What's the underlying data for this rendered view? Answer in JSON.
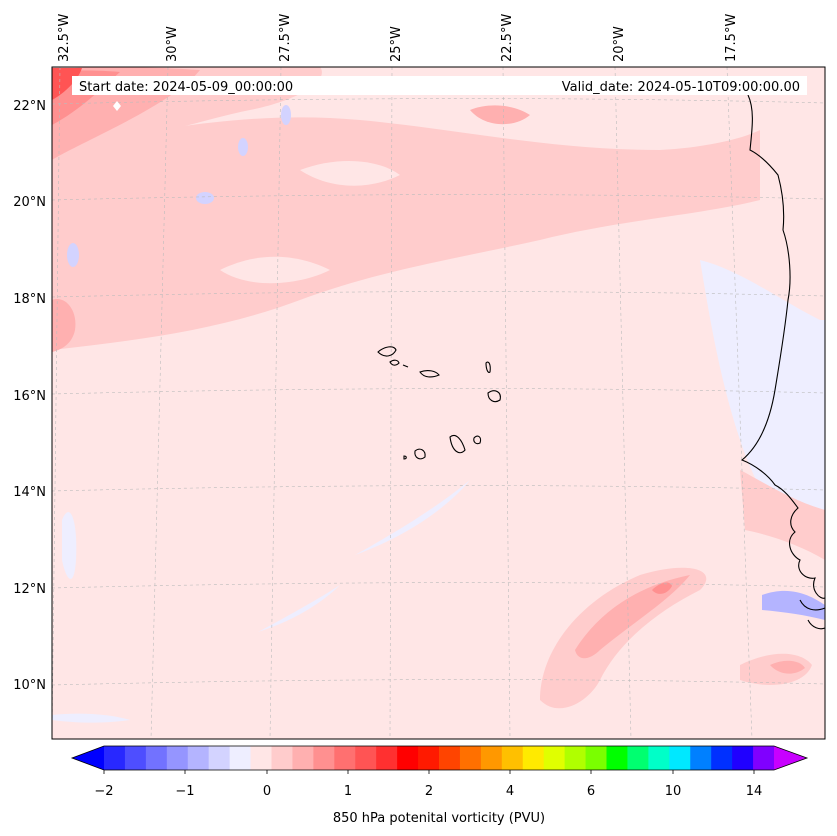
{
  "header": {
    "start_date": "Start date: 2024-05-09_00:00:00",
    "valid_date": "Valid_date: 2024-05-10T09:00:00.00"
  },
  "longitude_labels": [
    "32.5°W",
    "30°W",
    "27.5°W",
    "25°W",
    "22.5°W",
    "20°W",
    "17.5°W"
  ],
  "latitude_labels": [
    "22°N",
    "20°N",
    "18°N",
    "16°N",
    "14°N",
    "12°N",
    "10°N"
  ],
  "colorbar": {
    "label": "850 hPa potenital vorticity (PVU)",
    "tick_labels": [
      "−2",
      "−1",
      "0",
      "1",
      "2",
      "4",
      "6",
      "10",
      "14"
    ],
    "colors": [
      "#0000ff",
      "#2828ff",
      "#4e4eff",
      "#7272ff",
      "#9595ff",
      "#b4b4ff",
      "#d3d3ff",
      "#eeeeff",
      "#ffe6e6",
      "#ffcccc",
      "#ffb0b0",
      "#ff9090",
      "#ff7070",
      "#ff5454",
      "#ff3030",
      "#ff0000",
      "#ff1a00",
      "#ff4400",
      "#ff7000",
      "#ff9800",
      "#ffc000",
      "#ffea00",
      "#e0ff00",
      "#b0ff00",
      "#7aff00",
      "#00ff00",
      "#00ff70",
      "#00ffc8",
      "#00e8ff",
      "#0080ff",
      "#0030ff",
      "#2000ff",
      "#8000ff",
      "#c800ff"
    ]
  }
}
